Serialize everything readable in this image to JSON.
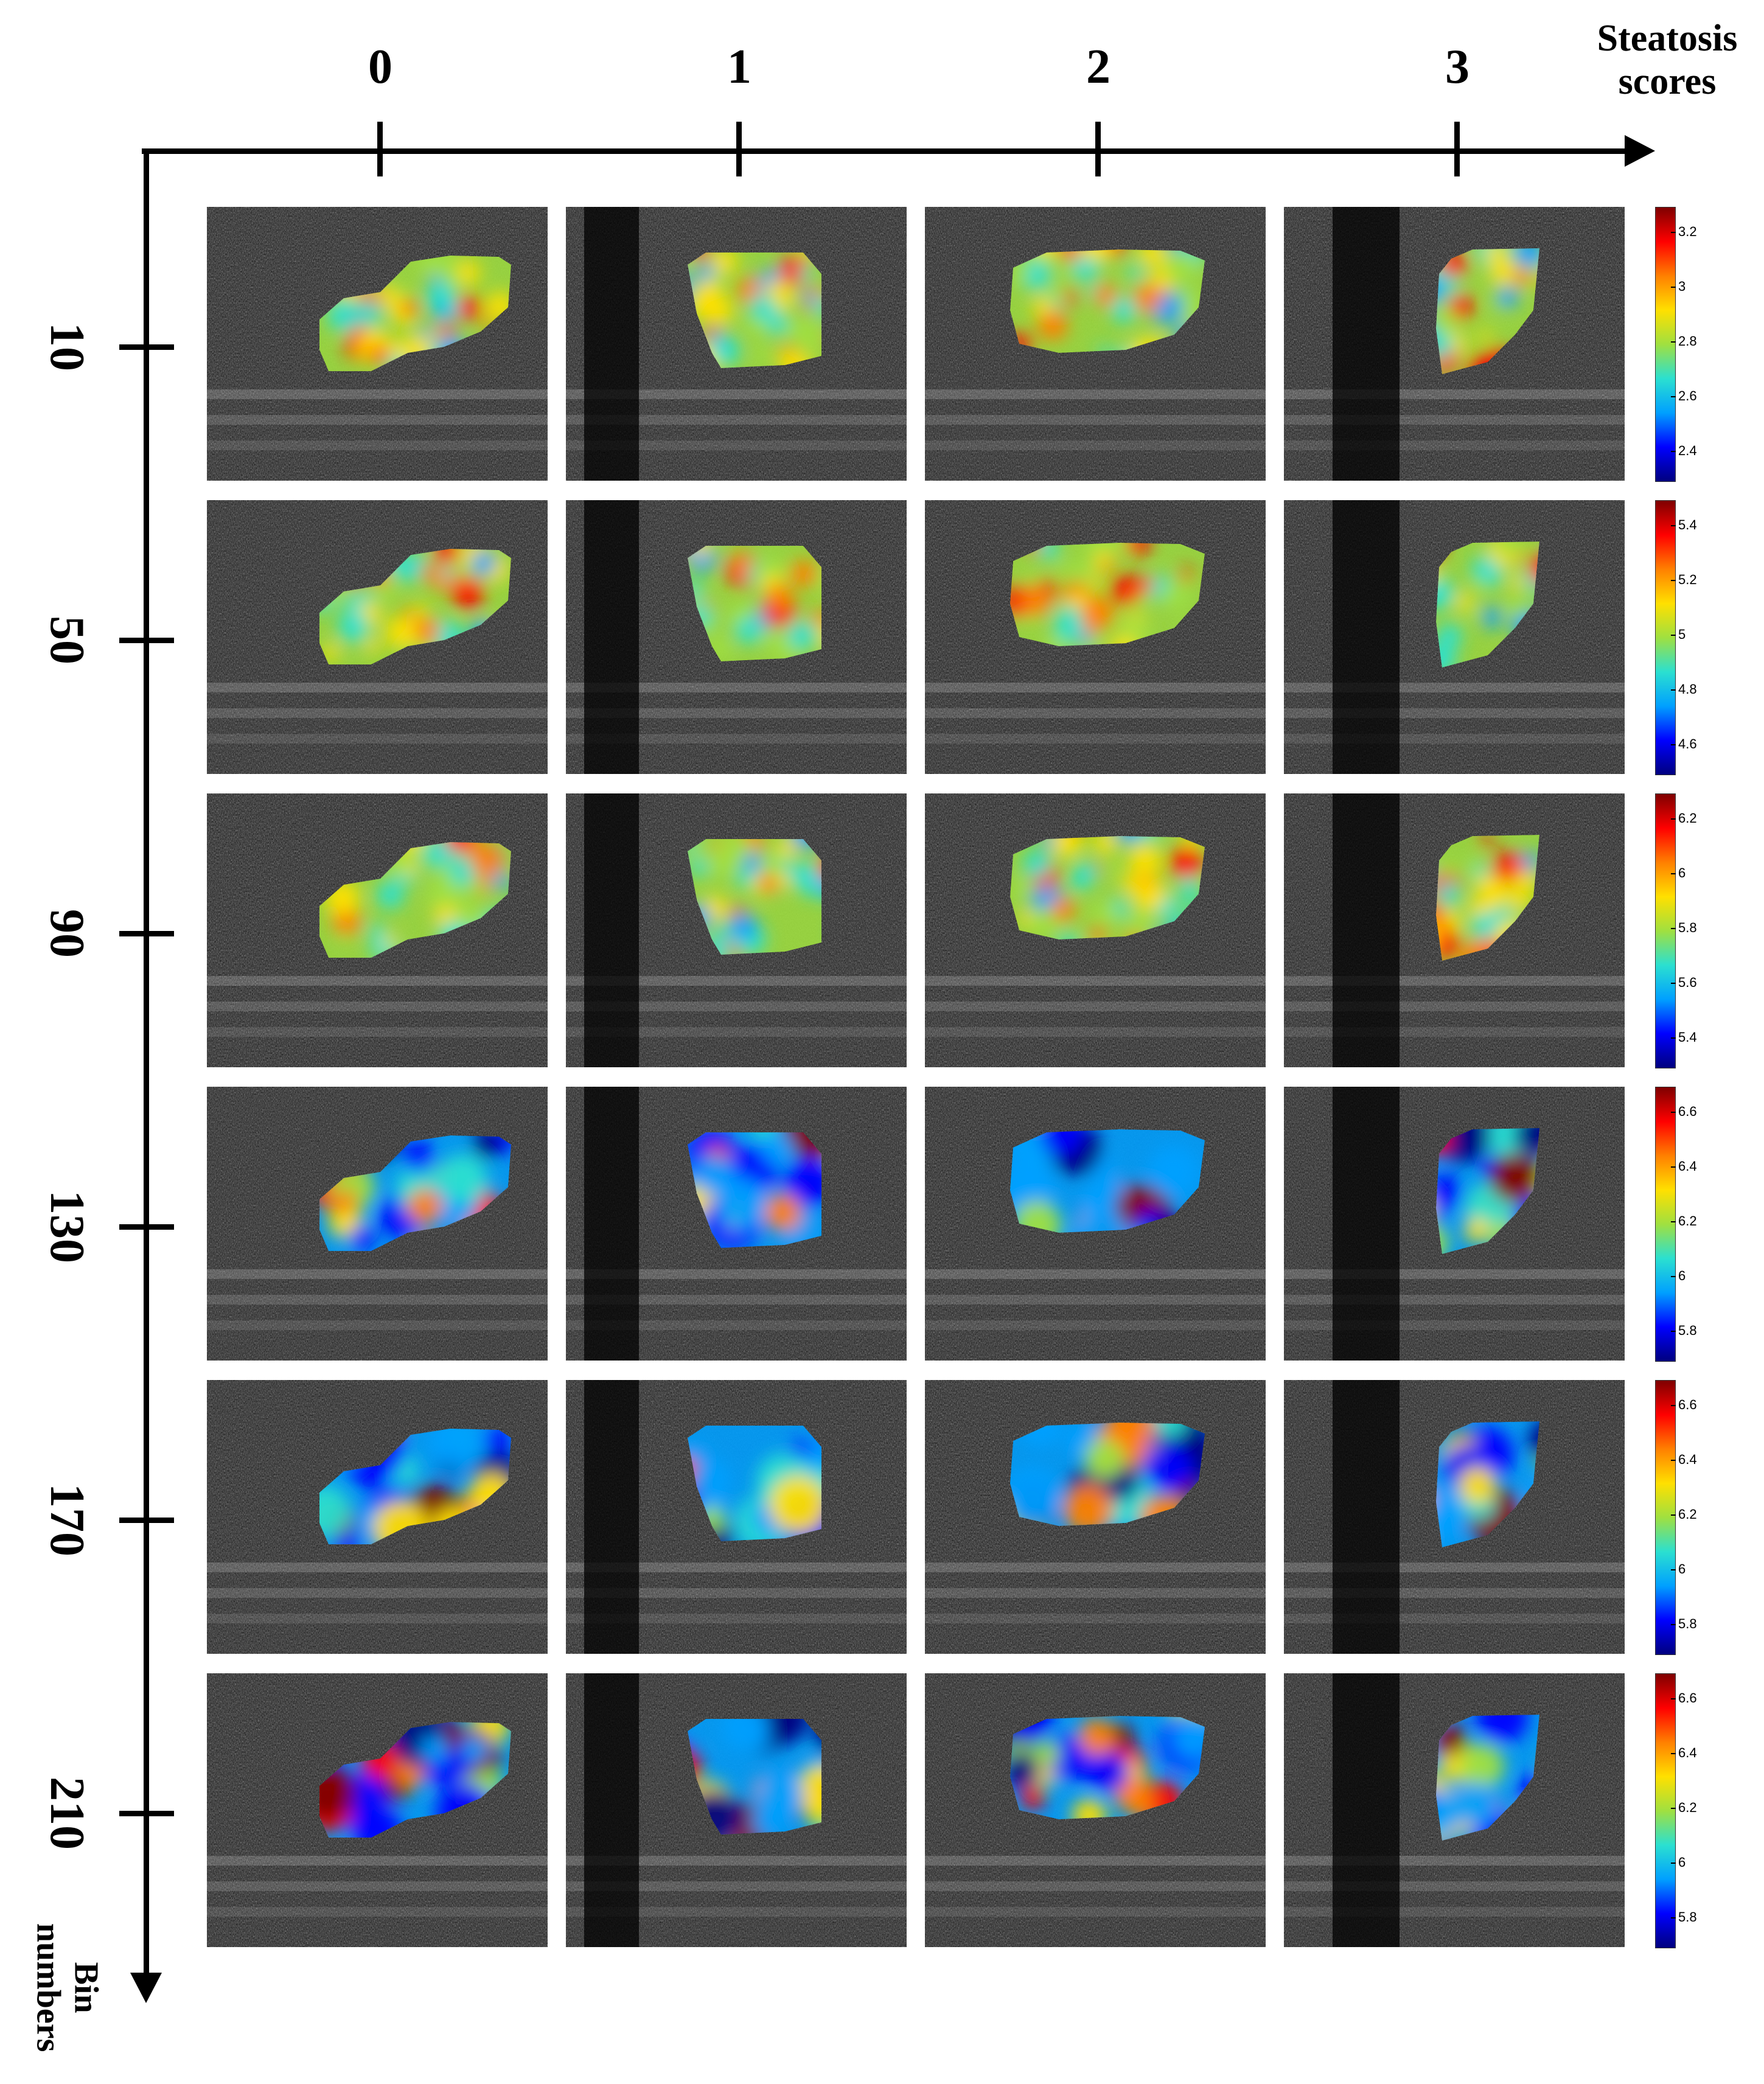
{
  "x_axis": {
    "title": [
      "Steatosis",
      "scores"
    ],
    "categories": [
      "0",
      "1",
      "2",
      "3"
    ]
  },
  "y_axis": {
    "title": [
      "Bin",
      "numbers"
    ],
    "categories": [
      "10",
      "50",
      "90",
      "130",
      "170",
      "210"
    ]
  },
  "colorbars": [
    {
      "row": "10",
      "ticks": [
        "3.2",
        "3",
        "2.8",
        "2.6",
        "2.4"
      ]
    },
    {
      "row": "50",
      "ticks": [
        "5.4",
        "5.2",
        "5",
        "4.8",
        "4.6"
      ]
    },
    {
      "row": "90",
      "ticks": [
        "6.2",
        "6",
        "5.8",
        "5.6",
        "5.4"
      ]
    },
    {
      "row": "130",
      "ticks": [
        "6.6",
        "6.4",
        "6.2",
        "6",
        "5.8"
      ]
    },
    {
      "row": "170",
      "ticks": [
        "6.6",
        "6.4",
        "6.2",
        "6",
        "5.8"
      ]
    },
    {
      "row": "210",
      "ticks": [
        "6.6",
        "6.4",
        "6.2",
        "6",
        "5.8"
      ]
    }
  ],
  "colormap": [
    "#00007f",
    "#0000ff",
    "#00a0ff",
    "#2be0d0",
    "#a0e040",
    "#ffe000",
    "#ff8000",
    "#ff0000",
    "#7f0000"
  ],
  "image_background": "#2a2a2a"
}
